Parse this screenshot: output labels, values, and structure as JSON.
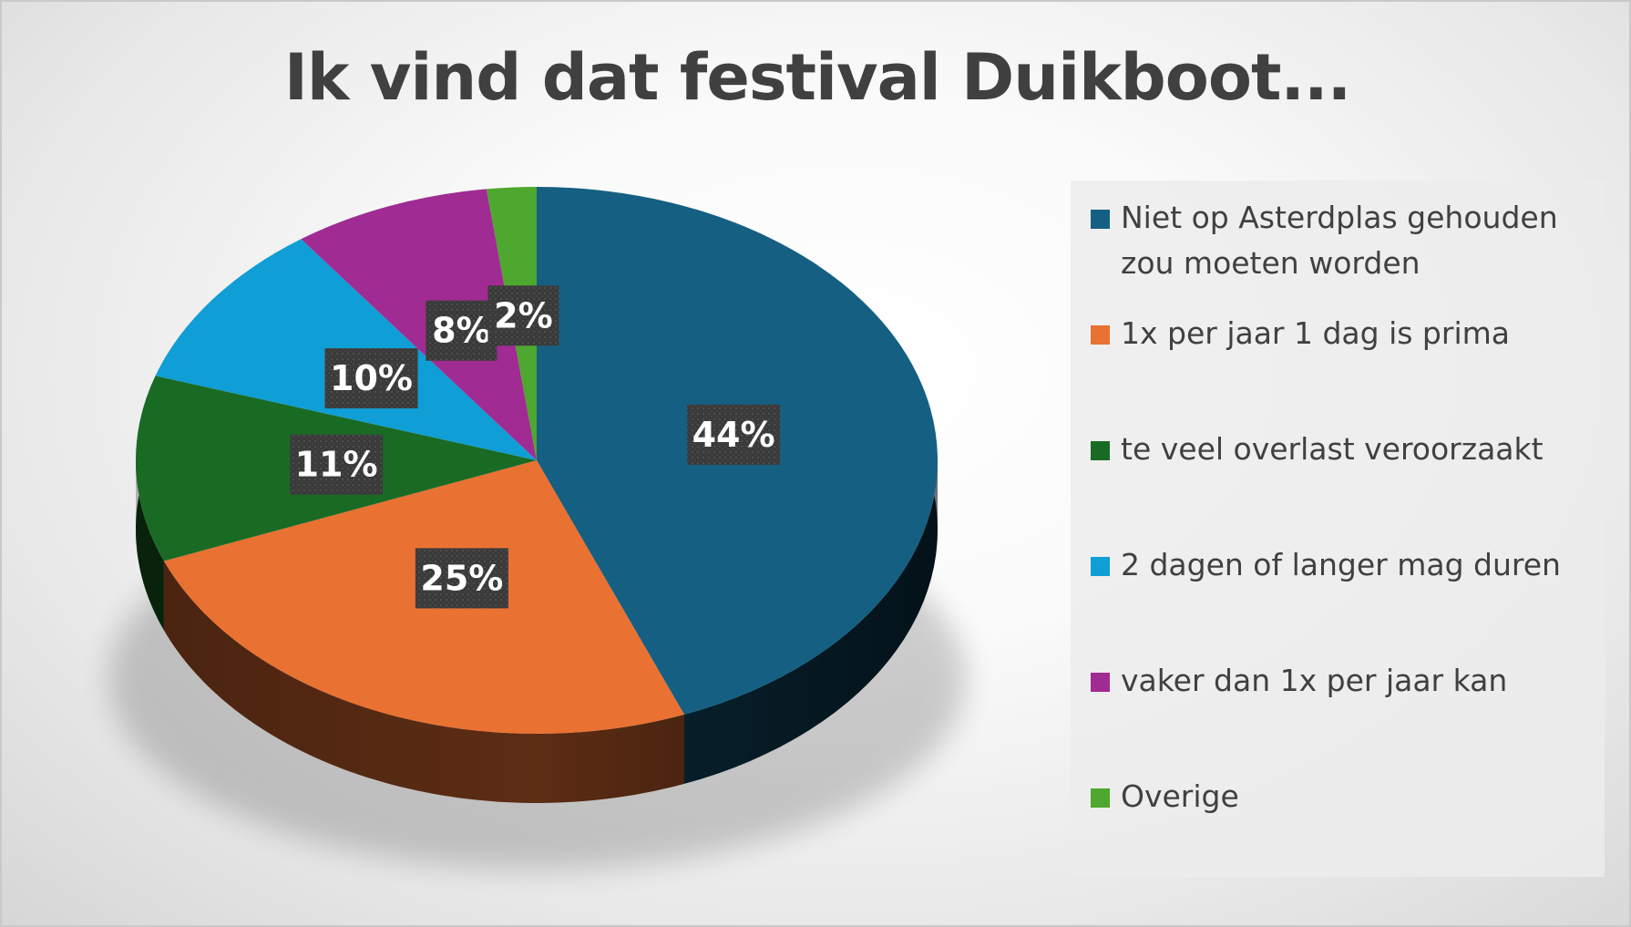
{
  "chart_data": {
    "type": "pie",
    "title": "Ik vind dat festival Duikboot...",
    "categories": [
      "Niet op Asterdplas gehouden zou moeten worden",
      "1x per jaar 1 dag is prima",
      "te veel overlast veroorzaakt",
      "2 dagen of langer mag duren",
      "vaker dan 1x per jaar kan",
      "Overige"
    ],
    "values": [
      44,
      25,
      11,
      10,
      8,
      2
    ],
    "data_labels": [
      "44%",
      "25%",
      "11%",
      "10%",
      "8%",
      "2%"
    ],
    "colors": [
      "#156082",
      "#E97132",
      "#196B24",
      "#0F9ED5",
      "#A02B93",
      "#4EA72E"
    ],
    "style": "3d",
    "legend_position": "right"
  }
}
